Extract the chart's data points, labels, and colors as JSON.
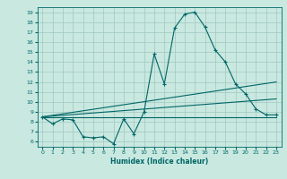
{
  "title": "",
  "xlabel": "Humidex (Indice chaleur)",
  "xlim": [
    -0.5,
    23.5
  ],
  "ylim": [
    5.5,
    19.5
  ],
  "yticks": [
    6,
    7,
    8,
    9,
    10,
    11,
    12,
    13,
    14,
    15,
    16,
    17,
    18,
    19
  ],
  "xticks": [
    0,
    1,
    2,
    3,
    4,
    5,
    6,
    7,
    8,
    9,
    10,
    11,
    12,
    13,
    14,
    15,
    16,
    17,
    18,
    19,
    20,
    21,
    22,
    23
  ],
  "bg_color": "#c8e8e0",
  "line_color": "#006666",
  "grid_color": "#a0c8c0",
  "lines": [
    {
      "x": [
        0,
        1,
        2,
        3,
        4,
        5,
        6,
        7,
        8,
        9,
        10,
        11,
        12,
        13,
        14,
        15,
        16,
        17,
        18,
        19,
        20,
        21,
        22,
        23
      ],
      "y": [
        8.5,
        7.8,
        8.3,
        8.2,
        6.5,
        6.4,
        6.5,
        5.8,
        8.3,
        6.8,
        9.0,
        14.8,
        11.8,
        17.4,
        18.8,
        19.0,
        17.5,
        15.2,
        14.0,
        11.8,
        10.8,
        9.3,
        8.7,
        8.7
      ],
      "marker": "+"
    },
    {
      "x": [
        0,
        23
      ],
      "y": [
        8.5,
        8.5
      ],
      "marker": null
    },
    {
      "x": [
        0,
        23
      ],
      "y": [
        8.5,
        10.3
      ],
      "marker": null
    },
    {
      "x": [
        0,
        23
      ],
      "y": [
        8.5,
        12.0
      ],
      "marker": null
    }
  ]
}
